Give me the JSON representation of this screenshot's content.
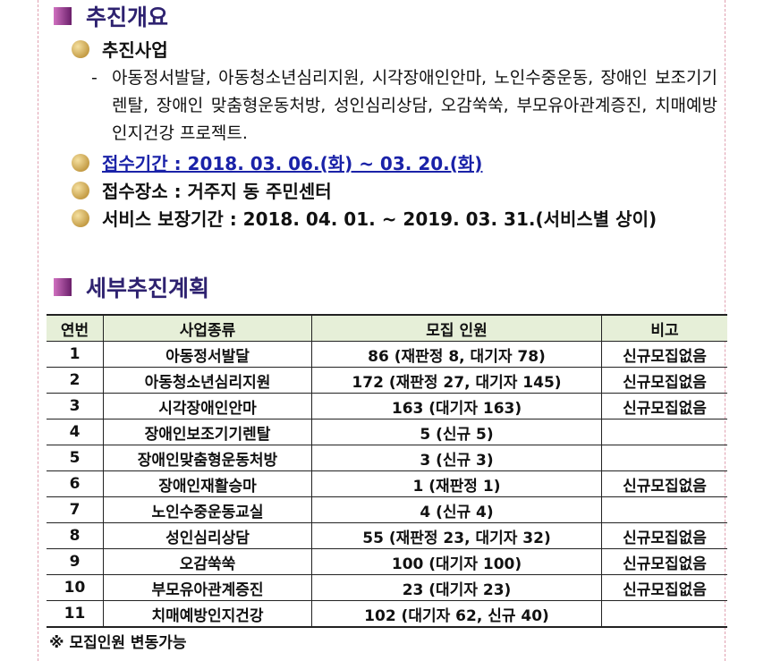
{
  "overview": {
    "title": "추진개요",
    "business": {
      "label": "추진사업",
      "marker": "-",
      "detail": "아동정서발달, 아동청소년심리지원, 시각장애인안마, 노인수중운동, 장애인 보조기기렌탈, 장애인 맞춤형운동처방, 성인심리상담, 오감쑥쑥, 부모유아관계증진, 치매예방 인지건강 프로젝트."
    },
    "period": "접수기간 : 2018. 03. 06.(화) ~ 03. 20.(화)",
    "place": "접수장소 : 거주지 동 주민센터",
    "service": "서비스 보장기간 : 2018. 04. 01. ~ 2019. 03. 31.(서비스별 상이)"
  },
  "plan": {
    "title": "세부추진계획",
    "table": {
      "header": [
        "연번",
        "사업종류",
        "모집 인원",
        "비고"
      ],
      "rows": [
        [
          "1",
          "아동정서발달",
          "86 (재판정 8, 대기자 78)",
          "신규모집없음"
        ],
        [
          "2",
          "아동청소년심리지원",
          "172 (재판정 27, 대기자 145)",
          "신규모집없음"
        ],
        [
          "3",
          "시각장애인안마",
          "163 (대기자 163)",
          "신규모집없음"
        ],
        [
          "4",
          "장애인보조기기렌탈",
          "5 (신규 5)",
          null
        ],
        [
          "5",
          "장애인맞춤형운동처방",
          "3 (신규 3)",
          null
        ],
        [
          "6",
          "장애인재활승마",
          "1 (재판정 1)",
          "신규모집없음"
        ],
        [
          "7",
          "노인수중운동교실",
          "4 (신규 4)",
          null
        ],
        [
          "8",
          "성인심리상담",
          "55 (재판정 23, 대기자 32)",
          "신규모집없음"
        ],
        [
          "9",
          "오감쑥쑥",
          "100 (대기자 100)",
          "신규모집없음"
        ],
        [
          "10",
          "부모유아관계증진",
          "23 (대기자 23)",
          "신규모집없음"
        ],
        [
          "11",
          "치매예방인지건강",
          "102 (대기자 62, 신규 40)",
          null
        ]
      ]
    },
    "note": "※ 모집인원 변동가능"
  }
}
